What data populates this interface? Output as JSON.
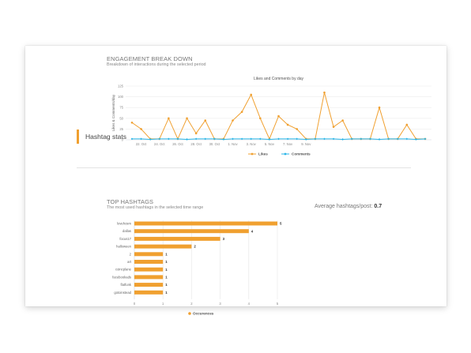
{
  "engagement": {
    "title": "ENGAGEMENT BREAK DOWN",
    "subtitle": "Breakdown of interactions during the selected period"
  },
  "hashtag_section": {
    "header": "Hashtag stats",
    "top_title": "TOP HASHTAGS",
    "top_subtitle": "The most used hashtags in the selected time range"
  },
  "average": {
    "label": "Average hashtags/post:",
    "value": "0.7"
  },
  "colors": {
    "likes": "#f0a030",
    "comments": "#29b6e8",
    "accent": "#f0a030"
  },
  "chart_data": [
    {
      "type": "line",
      "title": "Likes and Comments by day",
      "ylabel": "Likes & Comments/day",
      "xlabel": "",
      "ylim": [
        0,
        125
      ],
      "yticks": [
        0,
        25,
        50,
        75,
        100,
        125
      ],
      "x_tick_labels": [
        "22. Oct",
        "24. Oct",
        "26. Oct",
        "28. Oct",
        "30. Oct",
        "1. Nov",
        "3. Nov",
        "5. Nov",
        "7. Nov",
        "9. Nov"
      ],
      "x_tick_indices": [
        1,
        3,
        5,
        7,
        9,
        11,
        13,
        15,
        17,
        19
      ],
      "series": [
        {
          "name": "Likes",
          "values": [
            40,
            25,
            2,
            2,
            50,
            2,
            50,
            15,
            45,
            2,
            2,
            45,
            65,
            105,
            50,
            2,
            55,
            35,
            25,
            2,
            2,
            110,
            30,
            45,
            2,
            2,
            2,
            75,
            2,
            2,
            35,
            2,
            2
          ]
        },
        {
          "name": "Comments",
          "values": [
            2,
            2,
            1,
            2,
            2,
            2,
            1,
            2,
            2,
            2,
            1,
            2,
            2,
            2,
            2,
            1,
            2,
            2,
            2,
            1,
            2,
            2,
            2,
            1,
            2,
            2,
            2,
            1,
            2,
            2,
            2,
            1,
            2
          ]
        }
      ],
      "legend": "bottom",
      "grid": true
    },
    {
      "type": "bar",
      "orientation": "horizontal",
      "categories": [
        "lovehosm",
        "dallas",
        "focus17",
        "halloween",
        "2",
        "art",
        "coincplane",
        "facebookads",
        "flatfunk",
        "gotoinstead"
      ],
      "values": [
        5,
        4,
        3,
        2,
        1,
        1,
        1,
        1,
        1,
        1
      ],
      "series": [
        {
          "name": "Occurences",
          "values": [
            5,
            4,
            3,
            2,
            1,
            1,
            1,
            1,
            1,
            1
          ]
        }
      ],
      "xlim": [
        0,
        5
      ],
      "xticks": [
        0,
        1,
        2,
        3,
        4,
        5
      ],
      "legend": "bottom",
      "grid": true
    }
  ]
}
